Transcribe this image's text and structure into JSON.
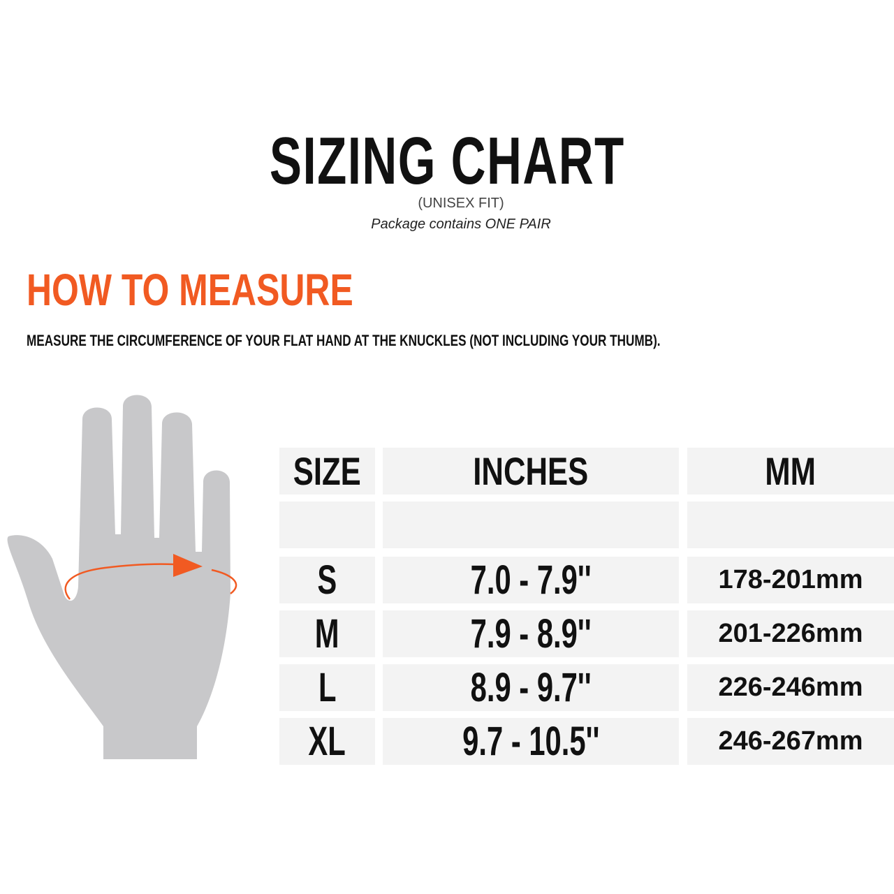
{
  "header": {
    "title": "SIZING CHART",
    "subtitle": "(UNISEX FIT)",
    "package_note": "Package contains ONE PAIR"
  },
  "how_to_measure": {
    "heading": "HOW TO MEASURE",
    "instruction": "MEASURE THE CIRCUMFERENCE OF YOUR FLAT HAND AT THE KNUCKLES (NOT INCLUDING YOUR THUMB)."
  },
  "colors": {
    "accent": "#f15a22",
    "hand": "#c8c8ca",
    "cell": "#f3f3f3"
  },
  "icons": {
    "illustration": "hand-measure-icon"
  },
  "table": {
    "columns": [
      "SIZE",
      "INCHES",
      "MM"
    ],
    "rows": [
      {
        "size": "S",
        "inches": "7.0 - 7.9''",
        "mm": "178-201mm"
      },
      {
        "size": "M",
        "inches": "7.9 - 8.9''",
        "mm": "201-226mm"
      },
      {
        "size": "L",
        "inches": "8.9 - 9.7''",
        "mm": "226-246mm"
      },
      {
        "size": "XL",
        "inches": "9.7 - 10.5''",
        "mm": "246-267mm"
      }
    ]
  }
}
